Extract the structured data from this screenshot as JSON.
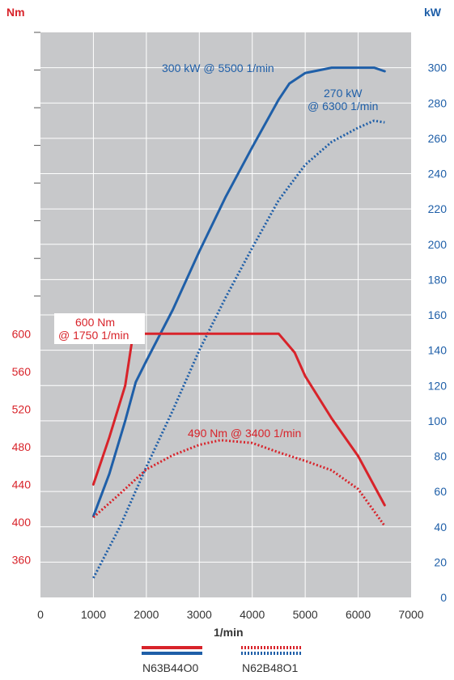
{
  "chart_data": {
    "type": "line",
    "xlabel": "1/min",
    "x_ticks": [
      "0",
      "1000",
      "2000",
      "3000",
      "4000",
      "5000",
      "6000",
      "7000"
    ],
    "xlim": [
      0,
      7000
    ],
    "y_left": {
      "label": "Nm",
      "ticks": [
        "360",
        "400",
        "440",
        "480",
        "520",
        "560",
        "600"
      ],
      "lim": [
        320,
        920
      ],
      "color": "#d8232a"
    },
    "y_right": {
      "label": "kW",
      "ticks": [
        "0",
        "20",
        "40",
        "60",
        "80",
        "100",
        "120",
        "140",
        "160",
        "180",
        "200",
        "220",
        "240",
        "260",
        "280",
        "300"
      ],
      "lim": [
        0,
        320
      ],
      "color": "#1f5fa8"
    },
    "grid": true,
    "background": "#c7c8ca",
    "series": [
      {
        "name": "N63B44O0",
        "quantity": "power",
        "axis": "right",
        "color": "#1f5fa8",
        "style": "solid",
        "x": [
          1000,
          1300,
          1600,
          1800,
          2000,
          2500,
          3000,
          3500,
          4000,
          4500,
          4700,
          5000,
          5500,
          6000,
          6300,
          6500
        ],
        "y": [
          46,
          70,
          100,
          122,
          134,
          163,
          196,
          227,
          255,
          282,
          291,
          297,
          300,
          300,
          300,
          298
        ]
      },
      {
        "name": "N62B48O1",
        "quantity": "power",
        "axis": "right",
        "color": "#1f5fa8",
        "style": "dotted",
        "x": [
          1000,
          1500,
          2000,
          2500,
          3000,
          3500,
          4000,
          4500,
          5000,
          5500,
          6000,
          6300,
          6500
        ],
        "y": [
          11,
          40,
          74,
          106,
          140,
          170,
          198,
          225,
          245,
          258,
          266,
          270,
          269
        ]
      },
      {
        "name": "N63B44O0",
        "quantity": "torque",
        "axis": "left",
        "color": "#d8232a",
        "style": "solid",
        "x": [
          1000,
          1300,
          1600,
          1750,
          2000,
          3000,
          4000,
          4500,
          4800,
          5000,
          5500,
          6000,
          6500
        ],
        "y": [
          440,
          490,
          545,
          600,
          600,
          600,
          600,
          600,
          580,
          555,
          510,
          470,
          418
        ]
      },
      {
        "name": "N62B48O1",
        "quantity": "torque",
        "axis": "left",
        "color": "#d8232a",
        "style": "dotted",
        "x": [
          1000,
          1500,
          2000,
          2500,
          3000,
          3400,
          4000,
          4500,
          5000,
          5500,
          6000,
          6500
        ],
        "y": [
          405,
          430,
          456,
          471,
          482,
          487,
          484,
          474,
          465,
          455,
          435,
          396
        ]
      }
    ],
    "annotations": [
      {
        "text": "300 kW @ 5500 1/min",
        "color": "#1f5fa8"
      },
      {
        "line1": "270 kW",
        "line2": "@ 6300 1/min",
        "color": "#1f5fa8"
      },
      {
        "line1": "600 Nm",
        "line2": "@ 1750 1/min",
        "color": "#d8232a"
      },
      {
        "text": "490 Nm @ 3400 1/min",
        "color": "#d8232a"
      }
    ],
    "legend": {
      "placement": "bottom",
      "items": [
        {
          "label": "N63B44O0",
          "style": "solid"
        },
        {
          "label": "N62B48O1",
          "style": "dotted"
        }
      ]
    }
  }
}
